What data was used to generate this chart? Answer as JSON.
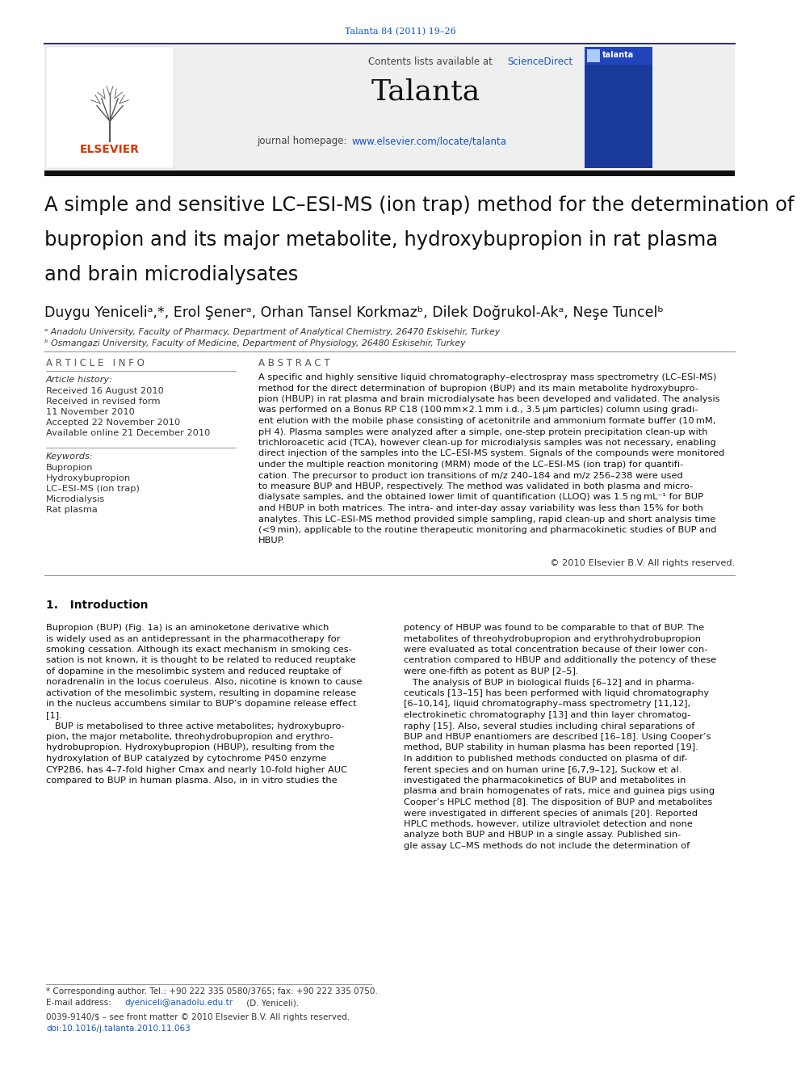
{
  "journal_ref": "Talanta 84 (2011) 19–26",
  "journal_name": "Talanta",
  "contents_pre": "Contents lists available at ",
  "contents_link": "ScienceDirect",
  "homepage_pre": "journal homepage: ",
  "homepage_link": "www.elsevier.com/locate/talanta",
  "title_lines": [
    "A simple and sensitive LC–ESI-MS (ion trap) method for the determination of",
    "bupropion and its major metabolite, hydroxybupropion in rat plasma",
    "and brain microdialysates"
  ],
  "authors": "Duygu Yeniceliᵃ,*, Erol Şenerᵃ, Orhan Tansel Korkmazᵇ, Dilek Doğrukol-Akᵃ, Neşe Tuncelᵇ",
  "affil_a": "ᵃ Anadolu University, Faculty of Pharmacy, Department of Analytical Chemistry, 26470 Eskisehir, Turkey",
  "affil_b": "ᵇ Osmangazi University, Faculty of Medicine, Department of Physiology, 26480 Eskisehir, Turkey",
  "article_info_header": "A R T I C L E   I N F O",
  "abstract_header": "A B S T R A C T",
  "article_history_label": "Article history:",
  "history_lines": [
    "Received 16 August 2010",
    "Received in revised form",
    "11 November 2010",
    "Accepted 22 November 2010",
    "Available online 21 December 2010"
  ],
  "keywords_label": "Keywords:",
  "keywords": [
    "Bupropion",
    "Hydroxybupropion",
    "LC–ESI-MS (ion trap)",
    "Microdialysis",
    "Rat plasma"
  ],
  "abstract_lines": [
    "A specific and highly sensitive liquid chromatography–electrospray mass spectrometry (LC–ESI-MS)",
    "method for the direct determination of bupropion (BUP) and its main metabolite hydroxybupro-",
    "pion (HBUP) in rat plasma and brain microdialysate has been developed and validated. The analysis",
    "was performed on a Bonus RP C18 (100 mm×2.1 mm i.d., 3.5 μm particles) column using gradi-",
    "ent elution with the mobile phase consisting of acetonitrile and ammonium formate buffer (10 mM,",
    "pH 4). Plasma samples were analyzed after a simple, one-step protein precipitation clean-up with",
    "trichloroacetic acid (TCA), however clean-up for microdialysis samples was not necessary, enabling",
    "direct injection of the samples into the LC–ESI-MS system. Signals of the compounds were monitored",
    "under the multiple reaction monitoring (MRM) mode of the LC–ESI-MS (ion trap) for quantifi-",
    "cation. The precursor to product ion transitions of m/z 240–184 and m/z 256–238 were used",
    "to measure BUP and HBUP, respectively. The method was validated in both plasma and micro-",
    "dialysate samples, and the obtained lower limit of quantification (LLOQ) was 1.5 ng mL⁻¹ for BUP",
    "and HBUP in both matrices. The intra- and inter-day assay variability was less than 15% for both",
    "analytes. This LC–ESI-MS method provided simple sampling, rapid clean-up and short analysis time",
    "(<9 min), applicable to the routine therapeutic monitoring and pharmacokinetic studies of BUP and",
    "HBUP."
  ],
  "copyright": "© 2010 Elsevier B.V. All rights reserved.",
  "intro_header": "1.   Introduction",
  "intro_left": [
    "Bupropion (BUP) (Fig. 1a) is an aminoketone derivative which",
    "is widely used as an antidepressant in the pharmacotherapy for",
    "smoking cessation. Although its exact mechanism in smoking ces-",
    "sation is not known, it is thought to be related to reduced reuptake",
    "of dopamine in the mesolimbic system and reduced reuptake of",
    "noradrenalin in the locus coeruleus. Also, nicotine is known to cause",
    "activation of the mesolimbic system, resulting in dopamine release",
    "in the nucleus accumbens similar to BUP’s dopamine release effect",
    "[1].",
    "   BUP is metabolised to three active metabolites; hydroxybupro-",
    "pion, the major metabolite, threohydrobupropion and erythro-",
    "hydrobupropion. Hydroxybupropion (HBUP), resulting from the",
    "hydroxylation of BUP catalyzed by cytochrome P450 enzyme",
    "CYP2B6, has 4–7-fold higher Cmax and nearly 10-fold higher AUC",
    "compared to BUP in human plasma. Also, in in vitro studies the"
  ],
  "intro_right": [
    "potency of HBUP was found to be comparable to that of BUP. The",
    "metabolites of threohydrobupropion and erythrohydrobupropion",
    "were evaluated as total concentration because of their lower con-",
    "centration compared to HBUP and additionally the potency of these",
    "were one-fifth as potent as BUP [2–5].",
    "   The analysis of BUP in biological fluids [6–12] and in pharma-",
    "ceuticals [13–15] has been performed with liquid chromatography",
    "[6–10,14], liquid chromatography–mass spectrometry [11,12],",
    "electrokinetic chromatography [13] and thin layer chromatog-",
    "raphy [15]. Also, several studies including chiral separations of",
    "BUP and HBUP enantiomers are described [16–18]. Using Cooper’s",
    "method, BUP stability in human plasma has been reported [19].",
    "In addition to published methods conducted on plasma of dif-",
    "ferent species and on human urine [6,7,9–12], Suckow et al.",
    "investigated the pharmacokinetics of BUP and metabolites in",
    "plasma and brain homogenates of rats, mice and guinea pigs using",
    "Cooper’s HPLC method [8]. The disposition of BUP and metabolites",
    "were investigated in different species of animals [20]. Reported",
    "HPLC methods, however, utilize ultraviolet detection and none",
    "analyze both BUP and HBUP in a single assay. Published sin-",
    "gle assay LC–MS methods do not include the determination of"
  ],
  "footnote_star": "* Corresponding author. Tel.: +90 222 335 0580/3765; fax: +90 222 335 0750.",
  "footnote_email_pre": "E-mail address: ",
  "footnote_email_link": "dyeniceli@anadolu.edu.tr",
  "footnote_email_post": " (D. Yeniceli).",
  "issn_line": "0039-9140/$ – see front matter © 2010 Elsevier B.V. All rights reserved.",
  "doi_line": "doi:10.1016/j.talanta.2010.11.063",
  "header_bg": "#efefef",
  "thick_bar_color": "#111111",
  "elsevier_color": "#dd3300",
  "link_color": "#1155cc",
  "rule_color": "#888888",
  "top_rule_color": "#333366",
  "bg_color": "#ffffff",
  "text_dark": "#111111",
  "text_mid": "#333333",
  "text_light": "#555555",
  "cover_bg": "#2244bb"
}
